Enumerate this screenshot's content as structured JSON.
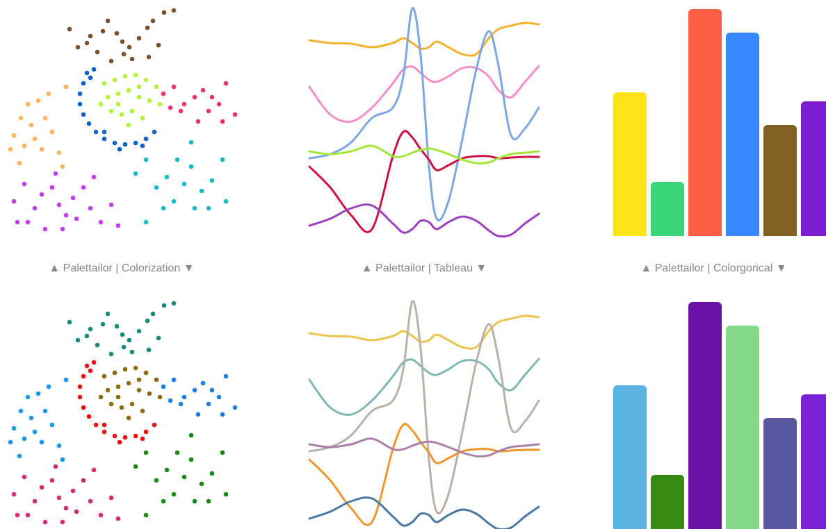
{
  "captions": [
    "▲ Palettailor | Colorization ▼",
    "▲ Palettailor | Tableau ▼",
    "▲ Palettailor | Colorgorical ▼"
  ],
  "chart_data": [
    {
      "type": "scatter",
      "xlim": [
        0,
        350
      ],
      "ylim": [
        350,
        0
      ],
      "series": [
        {
          "color": "#7a5128",
          "x": [
            100,
            112,
            125,
            148,
            155,
            168,
            176,
            186,
            200,
            212,
            220,
            236,
            250,
            228,
            214,
            190,
            160,
            140,
            130,
            178
          ],
          "y": [
            42,
            68,
            62,
            45,
            30,
            48,
            60,
            68,
            55,
            40,
            30,
            18,
            15,
            65,
            82,
            85,
            88,
            75,
            52,
            78
          ]
        },
        {
          "color": "#0f62c9",
          "x": [
            125,
            120,
            115,
            115,
            120,
            128,
            138,
            150,
            165,
            180,
            195,
            210,
            222,
            130,
            135,
            150,
            205,
            172
          ],
          "y": [
            105,
            120,
            135,
            150,
            165,
            178,
            190,
            200,
            206,
            208,
            206,
            200,
            190,
            112,
            100,
            190,
            210,
            215
          ]
        },
        {
          "color": "#b3f23a",
          "x": [
            150,
            165,
            180,
            195,
            210,
            225,
            155,
            170,
            185,
            200,
            215,
            160,
            175,
            190,
            205,
            145,
            230,
            185,
            170,
            200
          ],
          "y": [
            120,
            115,
            110,
            108,
            115,
            125,
            140,
            135,
            130,
            140,
            145,
            160,
            165,
            160,
            170,
            150,
            150,
            180,
            150,
            125
          ]
        },
        {
          "color": "#f0336a",
          "x": [
            235,
            250,
            265,
            280,
            292,
            300,
            315,
            325,
            338,
            285,
            260,
            305,
            245,
            320
          ],
          "y": [
            135,
            125,
            150,
            140,
            130,
            160,
            150,
            120,
            165,
            175,
            160,
            140,
            155,
            175
          ]
        },
        {
          "color": "#ffb35c",
          "x": [
            40,
            55,
            30,
            45,
            20,
            35,
            50,
            60,
            75,
            85,
            15,
            65,
            95,
            90,
            28,
            70
          ],
          "y": [
            150,
            145,
            170,
            180,
            195,
            210,
            200,
            215,
            190,
            220,
            215,
            170,
            125,
            240,
            235,
            135
          ]
        },
        {
          "color": "#c13ff0",
          "x": [
            20,
            35,
            50,
            60,
            75,
            85,
            95,
            105,
            120,
            130,
            145,
            160,
            170,
            40,
            65,
            90,
            110,
            80,
            25,
            135
          ],
          "y": [
            290,
            265,
            300,
            280,
            270,
            295,
            310,
            285,
            270,
            300,
            320,
            295,
            325,
            320,
            330,
            330,
            315,
            250,
            320,
            255
          ]
        },
        {
          "color": "#14bcc4",
          "x": [
            195,
            210,
            225,
            240,
            250,
            265,
            275,
            290,
            305,
            320,
            210,
            235,
            280,
            300,
            255,
            275,
            325
          ],
          "y": [
            250,
            230,
            270,
            255,
            290,
            265,
            240,
            275,
            260,
            230,
            320,
            300,
            300,
            300,
            230,
            205,
            290
          ]
        }
      ]
    },
    {
      "type": "line",
      "xlim": [
        0,
        330
      ],
      "ylim": [
        350,
        0
      ],
      "x": [
        0,
        30,
        60,
        90,
        120,
        135,
        148,
        160,
        172,
        183,
        200,
        220,
        240,
        258,
        272,
        290,
        310,
        330
      ],
      "series": [
        {
          "color": "#f6b12a",
          "values": [
            58,
            62,
            63,
            68,
            62,
            55,
            62,
            70,
            68,
            60,
            68,
            78,
            78,
            55,
            42,
            37,
            33,
            35
          ]
        },
        {
          "color": "#f58dc8",
          "values": [
            125,
            165,
            175,
            155,
            120,
            100,
            96,
            105,
            115,
            118,
            110,
            98,
            98,
            110,
            130,
            140,
            118,
            95
          ]
        },
        {
          "color": "#7ba7e3",
          "values": [
            228,
            222,
            205,
            170,
            155,
            110,
            12,
            80,
            240,
            315,
            290,
            200,
            100,
            45,
            95,
            195,
            185,
            155
          ]
        },
        {
          "color": "#d0103c",
          "values": [
            240,
            270,
            310,
            330,
            225,
            190,
            198,
            215,
            230,
            245,
            238,
            228,
            225,
            225,
            228,
            227,
            226,
            226
          ]
        },
        {
          "color": "#a3e638",
          "values": [
            218,
            222,
            218,
            210,
            225,
            225,
            220,
            216,
            214,
            216,
            222,
            230,
            235,
            234,
            228,
            222,
            220,
            218
          ]
        },
        {
          "color": "#9b3fc1",
          "values": [
            325,
            315,
            300,
            296,
            322,
            335,
            330,
            318,
            320,
            330,
            320,
            312,
            318,
            332,
            340,
            338,
            322,
            308
          ]
        }
      ]
    },
    {
      "type": "bar",
      "ylim": [
        0,
        340
      ],
      "values": [
        207,
        78,
        327,
        293,
        160,
        194
      ],
      "colors": [
        "#fde31a",
        "#3bd67a",
        "#ff5e46",
        "#3889ff",
        "#836124",
        "#7b1fd1"
      ]
    },
    {
      "type": "scatter",
      "xlim": [
        0,
        350
      ],
      "ylim": [
        350,
        0
      ],
      "series": [
        {
          "color": "#16897a",
          "x": [
            100,
            112,
            125,
            148,
            155,
            168,
            176,
            186,
            200,
            212,
            220,
            236,
            250,
            228,
            214,
            190,
            160,
            140,
            130,
            178
          ],
          "y": [
            42,
            68,
            62,
            45,
            30,
            48,
            60,
            68,
            55,
            40,
            30,
            18,
            15,
            65,
            82,
            85,
            88,
            75,
            52,
            78
          ]
        },
        {
          "color": "#f01010",
          "x": [
            125,
            120,
            115,
            115,
            120,
            128,
            138,
            150,
            165,
            180,
            195,
            210,
            222,
            130,
            135,
            150,
            205,
            172
          ],
          "y": [
            105,
            120,
            135,
            150,
            165,
            178,
            190,
            200,
            206,
            208,
            206,
            200,
            190,
            112,
            100,
            190,
            210,
            215
          ]
        },
        {
          "color": "#8c6c0c",
          "x": [
            150,
            165,
            180,
            195,
            210,
            225,
            155,
            170,
            185,
            200,
            215,
            160,
            175,
            190,
            205,
            145,
            230,
            185,
            170,
            200
          ],
          "y": [
            120,
            115,
            110,
            108,
            115,
            125,
            140,
            135,
            130,
            140,
            145,
            160,
            165,
            160,
            170,
            150,
            150,
            180,
            150,
            125
          ]
        },
        {
          "color": "#1a7fe0",
          "x": [
            235,
            250,
            265,
            280,
            292,
            300,
            315,
            325,
            338,
            285,
            260,
            305,
            245,
            320
          ],
          "y": [
            135,
            125,
            150,
            140,
            130,
            160,
            150,
            120,
            165,
            175,
            160,
            140,
            155,
            175
          ]
        },
        {
          "color": "#1898e6",
          "x": [
            40,
            55,
            30,
            45,
            20,
            35,
            50,
            60,
            75,
            85,
            15,
            65,
            95,
            90,
            28,
            70
          ],
          "y": [
            150,
            145,
            170,
            180,
            195,
            210,
            200,
            215,
            190,
            220,
            215,
            170,
            125,
            240,
            235,
            135
          ]
        },
        {
          "color": "#d42a78",
          "x": [
            20,
            35,
            50,
            60,
            75,
            85,
            95,
            105,
            120,
            130,
            145,
            160,
            170,
            40,
            65,
            90,
            110,
            80,
            25,
            135
          ],
          "y": [
            290,
            265,
            300,
            280,
            270,
            295,
            310,
            285,
            270,
            300,
            320,
            295,
            325,
            320,
            330,
            330,
            315,
            250,
            320,
            255
          ]
        },
        {
          "color": "#178a18",
          "x": [
            195,
            210,
            225,
            240,
            250,
            265,
            275,
            290,
            305,
            320,
            210,
            235,
            280,
            300,
            255,
            275,
            325
          ],
          "y": [
            250,
            230,
            270,
            255,
            290,
            265,
            240,
            275,
            260,
            230,
            320,
            300,
            300,
            300,
            230,
            205,
            290
          ]
        }
      ]
    },
    {
      "type": "line",
      "xlim": [
        0,
        330
      ],
      "ylim": [
        350,
        0
      ],
      "x": [
        0,
        30,
        60,
        90,
        120,
        135,
        148,
        160,
        172,
        183,
        200,
        220,
        240,
        258,
        272,
        290,
        310,
        330
      ],
      "series": [
        {
          "color": "#e9c54c",
          "values": [
            58,
            62,
            63,
            68,
            62,
            55,
            62,
            70,
            68,
            60,
            68,
            78,
            78,
            55,
            42,
            37,
            33,
            35
          ]
        },
        {
          "color": "#7fb8b3",
          "values": [
            125,
            165,
            175,
            155,
            120,
            100,
            96,
            105,
            115,
            118,
            110,
            98,
            98,
            110,
            130,
            140,
            118,
            95
          ]
        },
        {
          "color": "#bab0a8",
          "values": [
            228,
            222,
            205,
            170,
            155,
            110,
            12,
            80,
            240,
            315,
            290,
            200,
            100,
            45,
            95,
            195,
            185,
            155
          ]
        },
        {
          "color": "#f0962e",
          "values": [
            240,
            270,
            310,
            330,
            225,
            190,
            198,
            215,
            230,
            245,
            238,
            228,
            225,
            225,
            228,
            227,
            226,
            226
          ]
        },
        {
          "color": "#a97fa8",
          "values": [
            218,
            222,
            218,
            210,
            225,
            225,
            220,
            216,
            214,
            216,
            222,
            230,
            235,
            234,
            228,
            222,
            220,
            218
          ]
        },
        {
          "color": "#4a76a3",
          "values": [
            325,
            315,
            300,
            296,
            322,
            335,
            330,
            318,
            320,
            330,
            320,
            312,
            318,
            332,
            340,
            338,
            322,
            308
          ]
        }
      ]
    },
    {
      "type": "bar",
      "ylim": [
        0,
        340
      ],
      "values": [
        207,
        78,
        327,
        293,
        160,
        194
      ],
      "colors": [
        "#5ab3e0",
        "#378a14",
        "#6b12a6",
        "#86d98a",
        "#5858a0",
        "#7b22d3"
      ]
    }
  ]
}
